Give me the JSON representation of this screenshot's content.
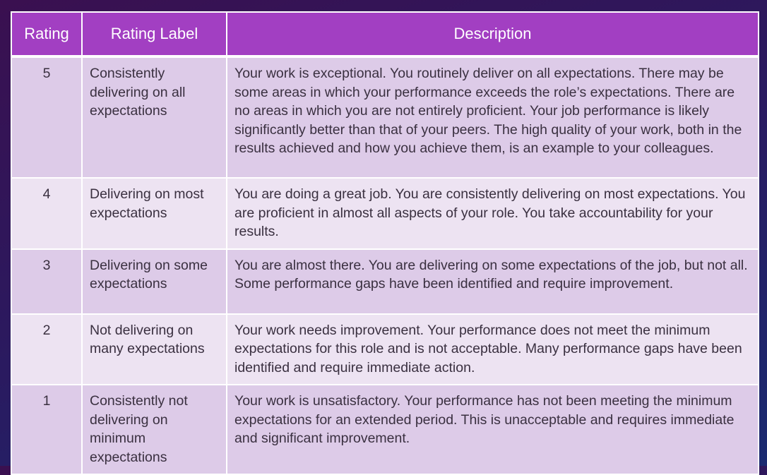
{
  "table": {
    "headers": [
      "Rating",
      "Rating Label",
      "Description"
    ],
    "rows": [
      {
        "rating": "5",
        "label": "Consistently delivering on all expectations",
        "description": "Your work is exceptional. You routinely deliver on all expectations. There may be some areas in which your performance exceeds the role’s expectations. There are no areas in which you are not entirely proficient. Your job performance is likely significantly better than that of your peers. The high quality of your work, both in the results achieved and how you achieve them, is an example to your colleagues."
      },
      {
        "rating": "4",
        "label": "Delivering on most expectations",
        "description": "You are doing a great job.  You are consistently delivering on most expectations.  You are proficient in almost all aspects of your role.  You take accountability for your results."
      },
      {
        "rating": "3",
        "label": "Delivering on some expectations",
        "description": "You are almost there. You are delivering on some expectations of the job, but not all. Some performance gaps have been identified and require improvement."
      },
      {
        "rating": "2",
        "label": "Not delivering on many expectations",
        "description": "Your work needs improvement.  Your performance does not meet the minimum expectations for this role and is not acceptable. Many performance gaps have been identified and require immediate action."
      },
      {
        "rating": "1",
        "label": "Consistently not delivering on minimum expectations",
        "description": "Your work is unsatisfactory.  Your performance has not been meeting the minimum expectations for an extended period.  This is unacceptable and requires immediate and significant improvement."
      }
    ]
  },
  "colors": {
    "header": "#a23fc2",
    "row_odd": "#ddcbe8",
    "row_even": "#ede3f2"
  }
}
